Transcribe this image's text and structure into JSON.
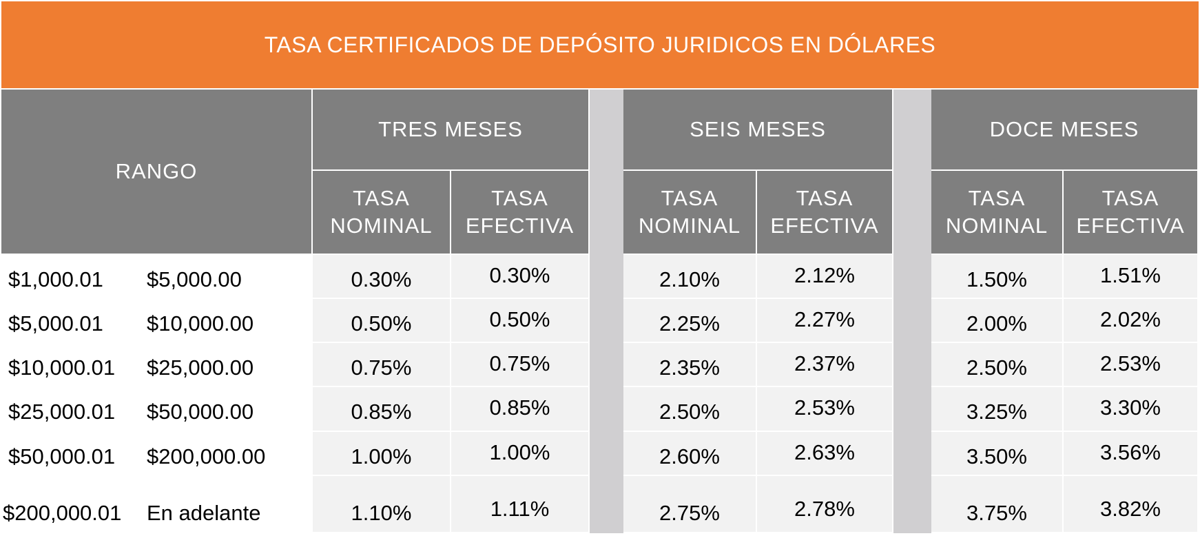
{
  "title": "TASA CERTIFICADOS  DE DEPÓSITO JURIDICOS EN DÓLARES",
  "headers": {
    "rango": "RANGO",
    "groups": [
      "TRES MESES",
      "SEIS MESES",
      "DOCE MESES"
    ],
    "nominal_line1": "TASA",
    "nominal_line2": "NOMINAL",
    "efectiva_line1": "TASA",
    "efectiva_line2": "EFECTIVA"
  },
  "rows": [
    {
      "from": "$1,000.01",
      "to": "$5,000.00",
      "tres_nominal": "0.30%",
      "tres_efectiva": "0.30%",
      "seis_nominal": "2.10%",
      "seis_efectiva": "2.12%",
      "doce_nominal": "1.50%",
      "doce_efectiva": "1.51%"
    },
    {
      "from": "$5,000.01",
      "to": "$10,000.00",
      "tres_nominal": "0.50%",
      "tres_efectiva": "0.50%",
      "seis_nominal": "2.25%",
      "seis_efectiva": "2.27%",
      "doce_nominal": "2.00%",
      "doce_efectiva": "2.02%"
    },
    {
      "from": "$10,000.01",
      "to": "$25,000.00",
      "tres_nominal": "0.75%",
      "tres_efectiva": "0.75%",
      "seis_nominal": "2.35%",
      "seis_efectiva": "2.37%",
      "doce_nominal": "2.50%",
      "doce_efectiva": "2.53%"
    },
    {
      "from": "$25,000.01",
      "to": "$50,000.00",
      "tres_nominal": "0.85%",
      "tres_efectiva": "0.85%",
      "seis_nominal": "2.50%",
      "seis_efectiva": "2.53%",
      "doce_nominal": "3.25%",
      "doce_efectiva": "3.30%"
    },
    {
      "from": "$50,000.01",
      "to": "$200,000.00",
      "tres_nominal": "1.00%",
      "tres_efectiva": "1.00%",
      "seis_nominal": "2.60%",
      "seis_efectiva": "2.63%",
      "doce_nominal": "3.50%",
      "doce_efectiva": "3.56%"
    },
    {
      "from": "$200,000.01",
      "to": "En adelante",
      "tres_nominal": "1.10%",
      "tres_efectiva": "1.11%",
      "seis_nominal": "2.75%",
      "seis_efectiva": "2.78%",
      "doce_nominal": "3.75%",
      "doce_efectiva": "3.82%"
    }
  ],
  "colors": {
    "title_bg": "#ef7d31",
    "header_bg": "#7f7f7f",
    "cell_bg": "#f2f2f2",
    "separator": "#d0cfd1"
  }
}
